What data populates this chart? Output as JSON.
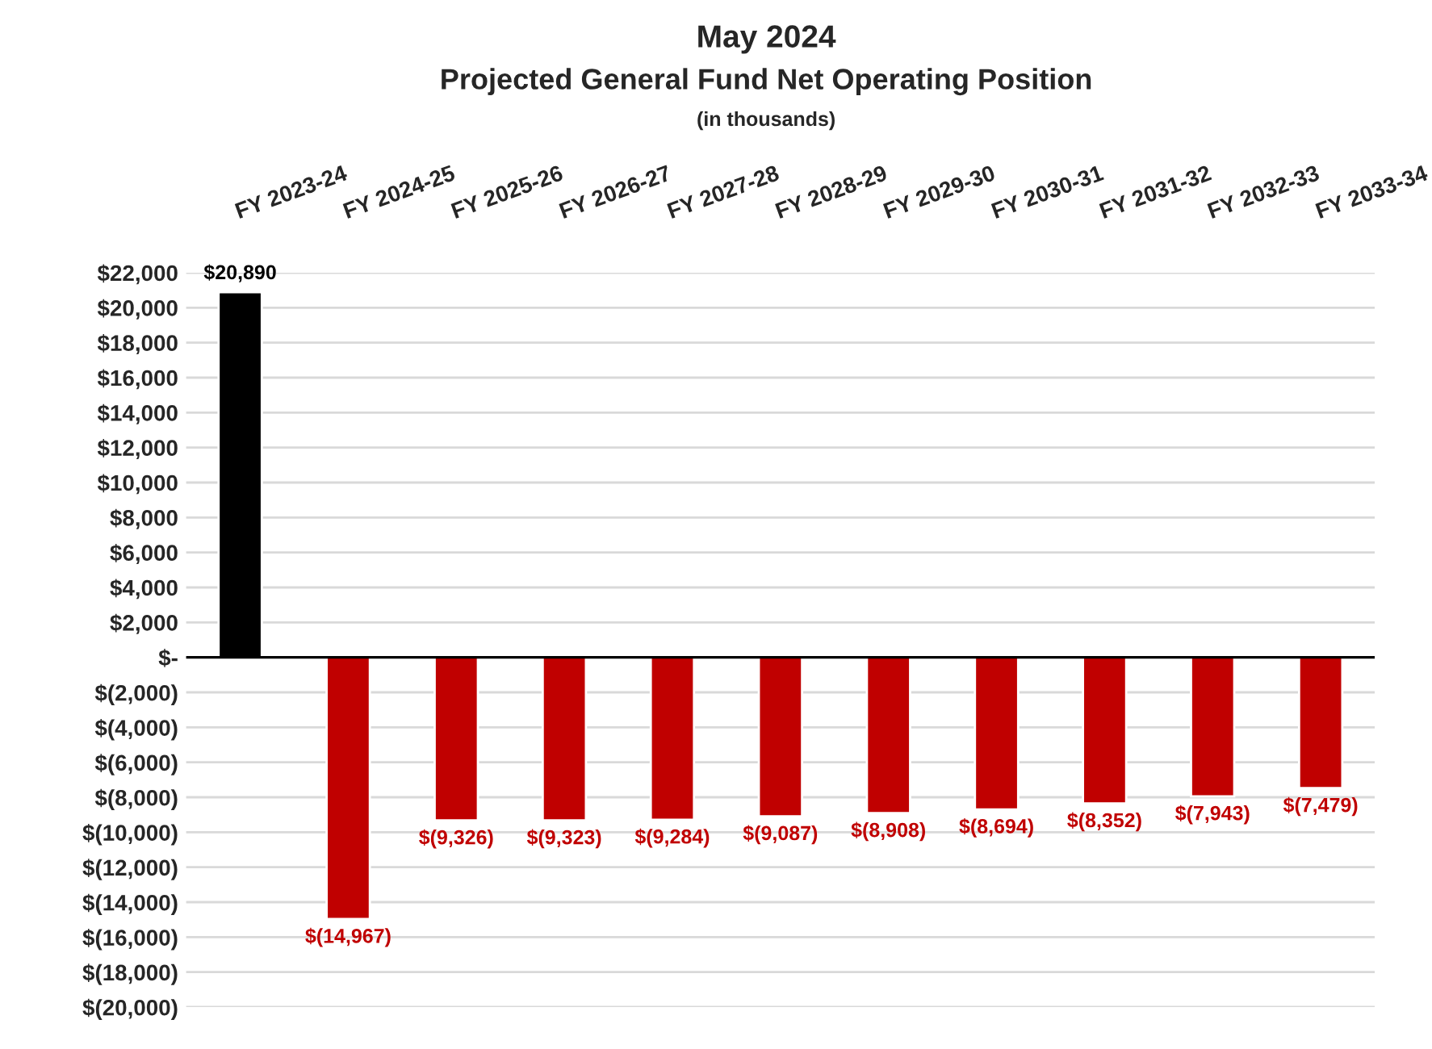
{
  "chart_data": {
    "type": "bar",
    "title": "May 2024",
    "subtitle": "Projected General Fund Net Operating Position",
    "annotations": [
      "(in thousands)"
    ],
    "categories": [
      "FY 2023-24",
      "FY 2024-25",
      "FY 2025-26",
      "FY 2026-27",
      "FY 2027-28",
      "FY 2028-29",
      "FY 2029-30",
      "FY 2030-31",
      "FY 2031-32",
      "FY 2032-33",
      "FY 2033-34"
    ],
    "values": [
      20890,
      -14967,
      -9326,
      -9323,
      -9284,
      -9087,
      -8908,
      -8694,
      -8352,
      -7943,
      -7479
    ],
    "colors": [
      "#000000",
      "#c00000",
      "#c00000",
      "#c00000",
      "#c00000",
      "#c00000",
      "#c00000",
      "#c00000",
      "#c00000",
      "#c00000",
      "#c00000"
    ],
    "value_labels": [
      "$20,890",
      "$(14,967)",
      "$(9,326)",
      "$(9,323)",
      "$(9,284)",
      "$(9,087)",
      "$(8,908)",
      "$(8,694)",
      "$(8,352)",
      "$(7,943)",
      "$(7,479)"
    ],
    "ylim": [
      -20000,
      22000
    ],
    "yticks": [
      {
        "value": 22000,
        "label": "$22,000"
      },
      {
        "value": 20000,
        "label": "$20,000"
      },
      {
        "value": 18000,
        "label": "$18,000"
      },
      {
        "value": 16000,
        "label": "$16,000"
      },
      {
        "value": 14000,
        "label": "$14,000"
      },
      {
        "value": 12000,
        "label": "$12,000"
      },
      {
        "value": 10000,
        "label": "$10,000"
      },
      {
        "value": 8000,
        "label": "$8,000"
      },
      {
        "value": 6000,
        "label": "$6,000"
      },
      {
        "value": 4000,
        "label": "$4,000"
      },
      {
        "value": 2000,
        "label": "$2,000"
      },
      {
        "value": 0,
        "label": "$-"
      },
      {
        "value": -2000,
        "label": "$(2,000)"
      },
      {
        "value": -4000,
        "label": "$(4,000)"
      },
      {
        "value": -6000,
        "label": "$(6,000)"
      },
      {
        "value": -8000,
        "label": "$(8,000)"
      },
      {
        "value": -10000,
        "label": "$(10,000)"
      },
      {
        "value": -12000,
        "label": "$(12,000)"
      },
      {
        "value": -14000,
        "label": "$(14,000)"
      },
      {
        "value": -16000,
        "label": "$(16,000)"
      },
      {
        "value": -18000,
        "label": "$(18,000)"
      },
      {
        "value": -20000,
        "label": "$(20,000)"
      }
    ],
    "grid": "y",
    "legend": false
  }
}
